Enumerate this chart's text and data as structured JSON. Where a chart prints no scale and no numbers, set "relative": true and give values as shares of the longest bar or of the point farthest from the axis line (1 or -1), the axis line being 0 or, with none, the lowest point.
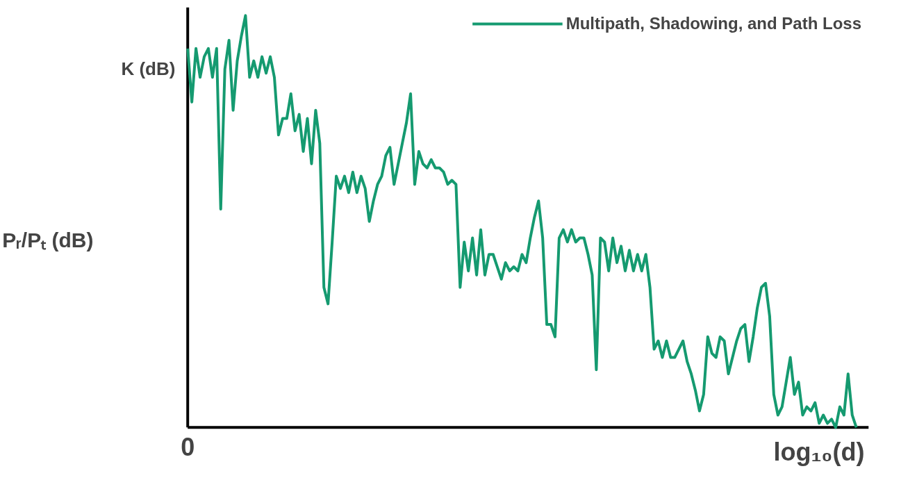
{
  "chart_data": {
    "type": "line",
    "xlabel": "log₁₀(d)",
    "ylabel": "Pᵣ/Pₜ (dB)",
    "annotations": [
      "K (dB)",
      "0"
    ],
    "relative": true,
    "legend": "top right",
    "categories": [
      null,
      null,
      null,
      null,
      null,
      null,
      null,
      null,
      null,
      null,
      null,
      null,
      null,
      null,
      null,
      null,
      null,
      null,
      null,
      null,
      null,
      null,
      null,
      null,
      null,
      null,
      null,
      null,
      null,
      null,
      null,
      null,
      null,
      null,
      null,
      null,
      null,
      null,
      null,
      null,
      null,
      null,
      null,
      null,
      null,
      null,
      null,
      null,
      null,
      null,
      null,
      null,
      null,
      null,
      null,
      null,
      null,
      null,
      null,
      null,
      null,
      null,
      null,
      null,
      null,
      null,
      null,
      null,
      null,
      null,
      null,
      null,
      null,
      null,
      null,
      null,
      null,
      null,
      null,
      null,
      null,
      null,
      null,
      null,
      null,
      null,
      null,
      null,
      null,
      null,
      null,
      null,
      null,
      null,
      null,
      null,
      null,
      null,
      null,
      null,
      null,
      null,
      null,
      null,
      null,
      null,
      null,
      null,
      null,
      null,
      null,
      null,
      null,
      null,
      null,
      null,
      null,
      null,
      null,
      null,
      null,
      null,
      null,
      null,
      null,
      null,
      null,
      null,
      null,
      null,
      null,
      null,
      null,
      null,
      null,
      null,
      null,
      null,
      null,
      null,
      null,
      null,
      null,
      null,
      null,
      null,
      null,
      null,
      null,
      null,
      null,
      null,
      null,
      null,
      null,
      null,
      null,
      null,
      null,
      null,
      null,
      null,
      null
    ],
    "series": [
      {
        "name": "Multipath, Shadowing, and Path Loss",
        "color": "#159a70",
        "values": [
          0.92,
          0.79,
          0.92,
          0.85,
          0.9,
          0.92,
          0.85,
          0.92,
          0.53,
          0.87,
          0.94,
          0.77,
          0.89,
          0.95,
          1,
          0.85,
          0.89,
          0.85,
          0.9,
          0.86,
          0.9,
          0.85,
          0.71,
          0.75,
          0.75,
          0.81,
          0.72,
          0.76,
          0.67,
          0.75,
          0.64,
          0.77,
          0.69,
          0.34,
          0.3,
          0.45,
          0.61,
          0.58,
          0.61,
          0.57,
          0.62,
          0.57,
          0.61,
          0.58,
          0.5,
          0.55,
          0.59,
          0.61,
          0.66,
          0.68,
          0.59,
          0.64,
          0.69,
          0.74,
          0.81,
          0.59,
          0.67,
          0.64,
          0.63,
          0.65,
          0.63,
          0.63,
          0.62,
          0.59,
          0.6,
          0.59,
          0.34,
          0.45,
          0.38,
          0.46,
          0.37,
          0.48,
          0.37,
          0.42,
          0.42,
          0.39,
          0.36,
          0.4,
          0.38,
          0.39,
          0.38,
          0.42,
          0.4,
          0.46,
          0.51,
          0.55,
          0.46,
          0.25,
          0.25,
          0.22,
          0.46,
          0.48,
          0.45,
          0.48,
          0.45,
          0.46,
          0.46,
          0.42,
          0.37,
          0.14,
          0.46,
          0.45,
          0.38,
          0.46,
          0.4,
          0.44,
          0.38,
          0.43,
          0.38,
          0.42,
          0.38,
          0.42,
          0.34,
          0.19,
          0.21,
          0.17,
          0.21,
          0.17,
          0.17,
          0.19,
          0.21,
          0.16,
          0.13,
          0.09,
          0.04,
          0.08,
          0.22,
          0.18,
          0.17,
          0.22,
          0.21,
          0.13,
          0.17,
          0.21,
          0.24,
          0.25,
          0.16,
          0.22,
          0.29,
          0.34,
          0.35,
          0.27,
          0.08,
          0.03,
          0.05,
          0.11,
          0.17,
          0.08,
          0.11,
          0.03,
          0.05,
          0.04,
          0.06,
          0.01,
          0.03,
          0.01,
          0.02,
          0,
          0.05,
          0.03,
          0.13,
          0.03,
          0
        ]
      }
    ]
  }
}
